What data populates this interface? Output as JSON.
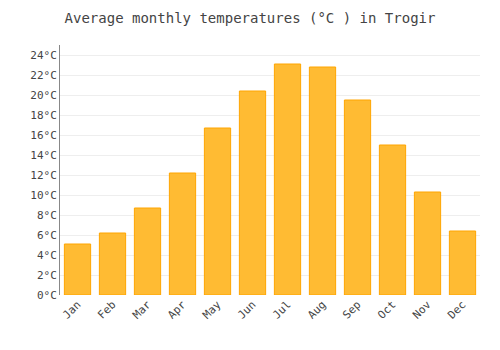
{
  "chart_data": {
    "type": "bar",
    "title": "Average monthly temperatures (°C ) in Trogir",
    "categories": [
      "Jan",
      "Feb",
      "Mar",
      "Apr",
      "May",
      "Jun",
      "Jul",
      "Aug",
      "Sep",
      "Oct",
      "Nov",
      "Dec"
    ],
    "values": [
      5.1,
      6.2,
      8.7,
      12.2,
      16.7,
      20.4,
      23.1,
      22.8,
      19.5,
      15.0,
      10.3,
      6.4
    ],
    "color": "#FFBB33",
    "ylim": [
      0,
      25
    ],
    "yticks": [
      {
        "value": 0,
        "label": "0°C"
      },
      {
        "value": 2,
        "label": "2°C"
      },
      {
        "value": 4,
        "label": "4°C"
      },
      {
        "value": 6,
        "label": "6°C"
      },
      {
        "value": 8,
        "label": "8°C"
      },
      {
        "value": 10,
        "label": "10°C"
      },
      {
        "value": 12,
        "label": "12°C"
      },
      {
        "value": 14,
        "label": "14°C"
      },
      {
        "value": 16,
        "label": "16°C"
      },
      {
        "value": 18,
        "label": "18°C"
      },
      {
        "value": 20,
        "label": "20°C"
      },
      {
        "value": 22,
        "label": "22°C"
      },
      {
        "value": 24,
        "label": "24°C"
      }
    ],
    "grid": true
  }
}
